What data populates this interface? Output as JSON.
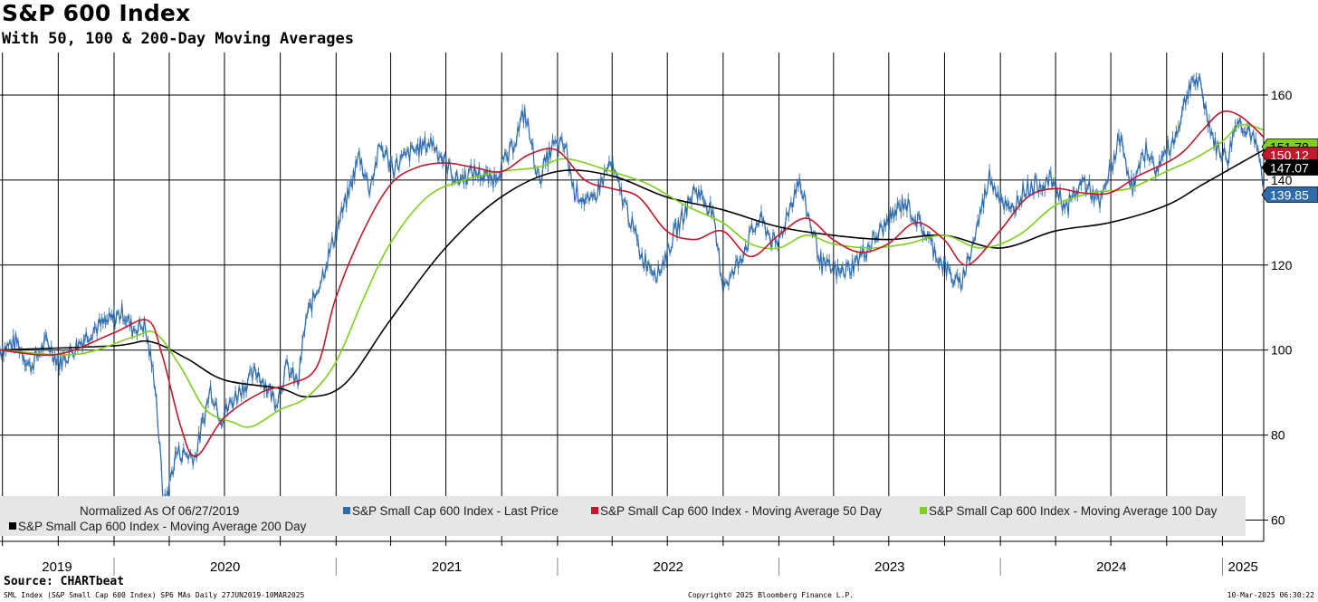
{
  "header": {
    "title": "S&P 600 Index",
    "subtitle": "With 50, 100 & 200-Day Moving Averages"
  },
  "footer": {
    "source": "Source: CHARTbeat",
    "left": "SML Index (S&P Small Cap 600 Index) SP6 MAs  Daily 27JUN2019-10MAR2025",
    "center": "Copyright© 2025 Bloomberg Finance L.P.",
    "right": "10-Mar-2025 06:30:22"
  },
  "colors": {
    "last_price": "#2e6bad",
    "ma50": "#c0182c",
    "ma100": "#7ecf1e",
    "ma200": "#000000",
    "grid": "#000000",
    "legend_bg": "#e6e6e6"
  },
  "chart_data": {
    "type": "line",
    "title": "S&P 600 Index",
    "subtitle": "With 50, 100 & 200-Day Moving Averages",
    "x_range": [
      "2019-06-27",
      "2025-03-10"
    ],
    "ylim": [
      55,
      170
    ],
    "y_ticks": [
      60,
      80,
      100,
      120,
      140,
      160
    ],
    "year_labels": [
      "2019",
      "2020",
      "2021",
      "2022",
      "2023",
      "2024",
      "2025"
    ],
    "grid": true,
    "normalization_note": "Normalized As Of 06/27/2019",
    "legend_position": "bottom",
    "series": [
      {
        "name": "S&P Small Cap 600 Index - Last Price",
        "color": "#2e6bad",
        "last_value_label": "139.85",
        "points": [
          [
            "2019-06-27",
            100
          ],
          [
            "2019-07-25",
            102
          ],
          [
            "2019-08-15",
            96
          ],
          [
            "2019-09-12",
            102
          ],
          [
            "2019-10-03",
            97
          ],
          [
            "2019-10-31",
            101
          ],
          [
            "2019-11-28",
            105
          ],
          [
            "2019-12-26",
            107
          ],
          [
            "2020-01-16",
            109
          ],
          [
            "2020-01-31",
            105
          ],
          [
            "2020-02-20",
            106
          ],
          [
            "2020-03-09",
            92
          ],
          [
            "2020-03-23",
            63
          ],
          [
            "2020-04-13",
            76
          ],
          [
            "2020-05-14",
            75
          ],
          [
            "2020-06-08",
            91
          ],
          [
            "2020-06-26",
            84
          ],
          [
            "2020-07-23",
            90
          ],
          [
            "2020-08-24",
            95
          ],
          [
            "2020-09-24",
            88
          ],
          [
            "2020-10-12",
            96
          ],
          [
            "2020-10-30",
            92
          ],
          [
            "2020-11-12",
            107
          ],
          [
            "2020-12-10",
            118
          ],
          [
            "2021-01-08",
            131
          ],
          [
            "2021-01-22",
            137
          ],
          [
            "2021-02-08",
            146
          ],
          [
            "2021-02-25",
            138
          ],
          [
            "2021-03-15",
            148
          ],
          [
            "2021-04-05",
            143
          ],
          [
            "2021-05-10",
            147
          ],
          [
            "2021-06-08",
            149
          ],
          [
            "2021-07-19",
            140
          ],
          [
            "2021-08-17",
            142
          ],
          [
            "2021-09-15",
            140
          ],
          [
            "2021-10-14",
            146
          ],
          [
            "2021-11-08",
            156
          ],
          [
            "2021-12-01",
            140
          ],
          [
            "2021-12-24",
            148
          ],
          [
            "2022-01-14",
            148
          ],
          [
            "2022-01-27",
            138
          ],
          [
            "2022-02-24",
            134
          ],
          [
            "2022-03-29",
            144
          ],
          [
            "2022-04-28",
            132
          ],
          [
            "2022-05-20",
            122
          ],
          [
            "2022-06-16",
            118
          ],
          [
            "2022-07-15",
            128
          ],
          [
            "2022-08-16",
            138
          ],
          [
            "2022-09-12",
            133
          ],
          [
            "2022-09-30",
            116
          ],
          [
            "2022-10-14",
            117
          ],
          [
            "2022-11-15",
            127
          ],
          [
            "2022-12-01",
            131
          ],
          [
            "2022-12-28",
            124
          ],
          [
            "2023-02-02",
            140
          ],
          [
            "2023-03-13",
            120
          ],
          [
            "2023-04-12",
            118
          ],
          [
            "2023-05-04",
            120
          ],
          [
            "2023-06-12",
            127
          ],
          [
            "2023-07-27",
            135
          ],
          [
            "2023-08-28",
            128
          ],
          [
            "2023-09-28",
            120
          ],
          [
            "2023-10-26",
            115
          ],
          [
            "2023-11-15",
            124
          ],
          [
            "2023-12-14",
            141
          ],
          [
            "2024-01-17",
            132
          ],
          [
            "2024-02-09",
            138
          ],
          [
            "2024-03-28",
            140
          ],
          [
            "2024-04-18",
            133
          ],
          [
            "2024-05-17",
            140
          ],
          [
            "2024-06-13",
            134
          ],
          [
            "2024-07-16",
            150
          ],
          [
            "2024-08-06",
            138
          ],
          [
            "2024-08-30",
            148
          ],
          [
            "2024-09-11",
            142
          ],
          [
            "2024-10-15",
            150
          ],
          [
            "2024-11-11",
            164
          ],
          [
            "2024-11-25",
            162
          ],
          [
            "2024-12-20",
            148
          ],
          [
            "2025-01-10",
            145
          ],
          [
            "2025-01-24",
            154
          ],
          [
            "2025-02-13",
            152
          ],
          [
            "2025-02-27",
            147
          ],
          [
            "2025-03-10",
            139.85
          ]
        ]
      },
      {
        "name": "S&P Small Cap 600 Index - Moving Average 50 Day",
        "color": "#c0182c",
        "last_value_label": "150.12",
        "points": [
          [
            "2019-06-27",
            100
          ],
          [
            "2019-09-30",
            99
          ],
          [
            "2019-12-31",
            104
          ],
          [
            "2020-02-25",
            107
          ],
          [
            "2020-03-20",
            99
          ],
          [
            "2020-04-20",
            82
          ],
          [
            "2020-05-15",
            75
          ],
          [
            "2020-06-30",
            84
          ],
          [
            "2020-08-30",
            90
          ],
          [
            "2020-10-15",
            92
          ],
          [
            "2020-11-30",
            96
          ],
          [
            "2020-12-31",
            112
          ],
          [
            "2021-02-15",
            128
          ],
          [
            "2021-04-01",
            139
          ],
          [
            "2021-05-15",
            143
          ],
          [
            "2021-07-01",
            144
          ],
          [
            "2021-08-15",
            143
          ],
          [
            "2021-10-01",
            142
          ],
          [
            "2021-11-15",
            146
          ],
          [
            "2021-12-31",
            147
          ],
          [
            "2022-02-15",
            140
          ],
          [
            "2022-03-31",
            138
          ],
          [
            "2022-05-15",
            136
          ],
          [
            "2022-06-30",
            128
          ],
          [
            "2022-08-15",
            126
          ],
          [
            "2022-09-30",
            128
          ],
          [
            "2022-11-15",
            122
          ],
          [
            "2022-12-31",
            127
          ],
          [
            "2023-02-15",
            131
          ],
          [
            "2023-03-31",
            126
          ],
          [
            "2023-05-15",
            123
          ],
          [
            "2023-06-30",
            125
          ],
          [
            "2023-08-15",
            130
          ],
          [
            "2023-09-30",
            126
          ],
          [
            "2023-11-07",
            120
          ],
          [
            "2023-12-31",
            128
          ],
          [
            "2024-02-15",
            136
          ],
          [
            "2024-03-31",
            138
          ],
          [
            "2024-05-15",
            137
          ],
          [
            "2024-06-30",
            137
          ],
          [
            "2024-08-15",
            141
          ],
          [
            "2024-09-30",
            144
          ],
          [
            "2024-10-31",
            147
          ],
          [
            "2024-12-01",
            152
          ],
          [
            "2024-12-31",
            156
          ],
          [
            "2025-01-31",
            155
          ],
          [
            "2025-03-10",
            150.12
          ]
        ]
      },
      {
        "name": "S&P Small Cap 600 Index - Moving Average 100 Day",
        "color": "#7ecf1e",
        "last_value_label": "151.78",
        "points": [
          [
            "2019-06-27",
            100
          ],
          [
            "2019-10-31",
            99
          ],
          [
            "2020-01-31",
            103
          ],
          [
            "2020-03-09",
            104
          ],
          [
            "2020-04-20",
            96
          ],
          [
            "2020-05-31",
            86
          ],
          [
            "2020-07-15",
            83
          ],
          [
            "2020-08-15",
            82
          ],
          [
            "2020-10-01",
            86
          ],
          [
            "2020-11-15",
            89
          ],
          [
            "2020-12-31",
            97
          ],
          [
            "2021-02-15",
            112
          ],
          [
            "2021-03-31",
            125
          ],
          [
            "2021-05-31",
            136
          ],
          [
            "2021-07-31",
            140
          ],
          [
            "2021-09-30",
            142
          ],
          [
            "2021-11-30",
            143
          ],
          [
            "2022-01-15",
            145
          ],
          [
            "2022-03-31",
            142
          ],
          [
            "2022-05-31",
            139
          ],
          [
            "2022-07-31",
            134
          ],
          [
            "2022-09-30",
            130
          ],
          [
            "2022-11-15",
            125
          ],
          [
            "2022-12-31",
            124
          ],
          [
            "2023-02-15",
            127
          ],
          [
            "2023-03-31",
            125
          ],
          [
            "2023-05-31",
            124
          ],
          [
            "2023-07-31",
            125
          ],
          [
            "2023-09-30",
            127
          ],
          [
            "2023-11-30",
            124
          ],
          [
            "2024-01-31",
            127
          ],
          [
            "2024-03-31",
            134
          ],
          [
            "2024-05-31",
            137
          ],
          [
            "2024-07-31",
            138
          ],
          [
            "2024-09-30",
            142
          ],
          [
            "2024-11-15",
            145
          ],
          [
            "2024-12-31",
            149
          ],
          [
            "2025-02-01",
            153
          ],
          [
            "2025-03-10",
            151.78
          ]
        ]
      },
      {
        "name": "S&P Small Cap 600 Index - Moving Average 200 Day",
        "color": "#000000",
        "last_value_label": "147.07",
        "points": [
          [
            "2019-06-27",
            100
          ],
          [
            "2019-12-31",
            101
          ],
          [
            "2020-02-29",
            102
          ],
          [
            "2020-04-30",
            98
          ],
          [
            "2020-06-30",
            93
          ],
          [
            "2020-09-30",
            91
          ],
          [
            "2020-11-15",
            89
          ],
          [
            "2021-01-15",
            92
          ],
          [
            "2021-03-31",
            107
          ],
          [
            "2021-06-30",
            124
          ],
          [
            "2021-09-30",
            136
          ],
          [
            "2021-12-31",
            142
          ],
          [
            "2022-03-31",
            141
          ],
          [
            "2022-06-30",
            136
          ],
          [
            "2022-09-30",
            133
          ],
          [
            "2022-12-31",
            129
          ],
          [
            "2023-03-31",
            127
          ],
          [
            "2023-06-30",
            126
          ],
          [
            "2023-09-30",
            127
          ],
          [
            "2023-12-31",
            124
          ],
          [
            "2024-03-31",
            128
          ],
          [
            "2024-06-30",
            130
          ],
          [
            "2024-09-30",
            134
          ],
          [
            "2024-11-30",
            139
          ],
          [
            "2025-01-31",
            144
          ],
          [
            "2025-03-10",
            147.07
          ]
        ]
      }
    ]
  }
}
